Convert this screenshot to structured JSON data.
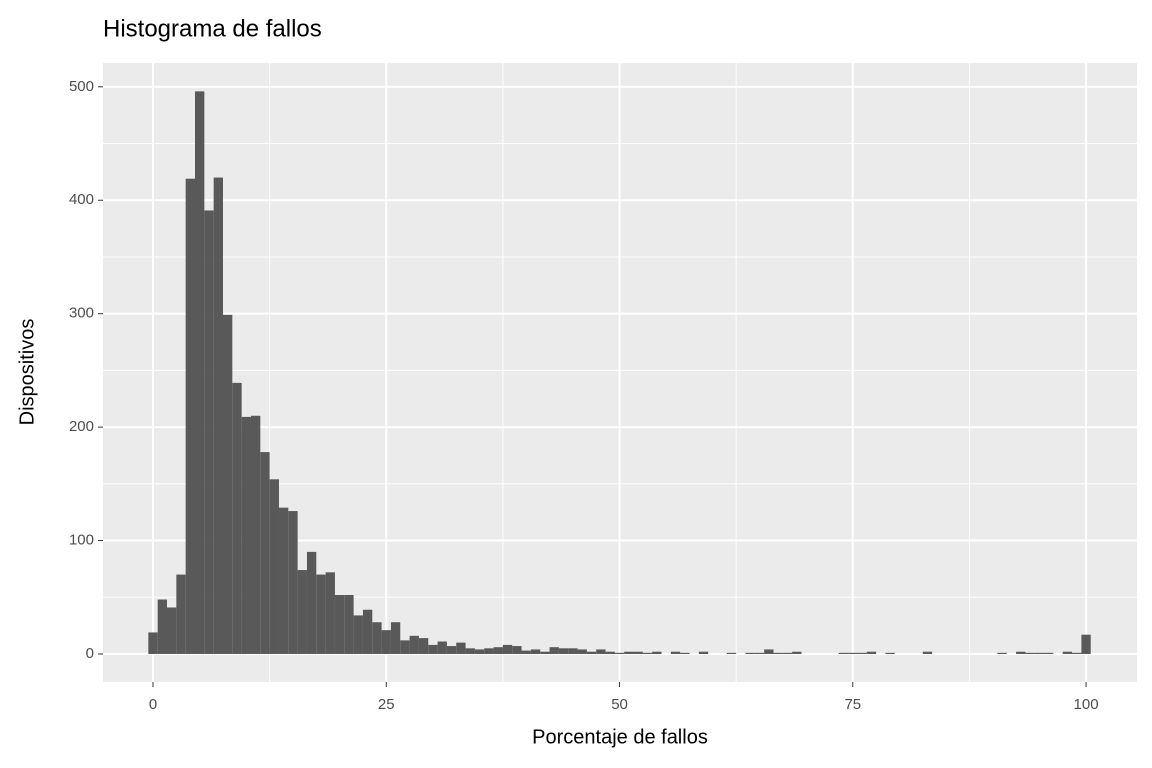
{
  "chart_data": {
    "type": "histogram",
    "title": "Histograma de fallos",
    "x_label": "Porcentaje de fallos",
    "y_label": "Dispositivos",
    "bins": [
      -0.5,
      0.5,
      1.5,
      2.5,
      3.5,
      4.5,
      5.5,
      6.5,
      7.5,
      8.5,
      9.5,
      10.5,
      11.5,
      12.5,
      13.5,
      14.5,
      15.5,
      16.5,
      17.5,
      18.5,
      19.5,
      20.5,
      21.5,
      22.5,
      23.5,
      24.5,
      25.5,
      26.5,
      27.5,
      28.5,
      29.5,
      30.5,
      31.5,
      32.5,
      33.5,
      34.5,
      35.5,
      36.5,
      37.5,
      38.5,
      39.5,
      40.5,
      41.5,
      42.5,
      43.5,
      44.5,
      45.5,
      46.5,
      47.5,
      48.5,
      49.5,
      50.5,
      51.5,
      52.5,
      53.5,
      54.5,
      55.5,
      56.5,
      57.5,
      58.5,
      59.5,
      60.5,
      61.5,
      62.5,
      63.5,
      64.5,
      65.5,
      66.5,
      67.5,
      68.5,
      69.5,
      70.5,
      71.5,
      72.5,
      73.5,
      74.5,
      75.5,
      76.5,
      77.5,
      78.5,
      79.5,
      80.5,
      81.5,
      82.5,
      83.5,
      84.5,
      85.5,
      86.5,
      87.5,
      88.5,
      89.5,
      90.5,
      91.5,
      92.5,
      93.5,
      94.5,
      95.5,
      96.5,
      97.5,
      98.5,
      99.5,
      100.5
    ],
    "counts": [
      19,
      48,
      41,
      70,
      419,
      496,
      391,
      420,
      299,
      239,
      209,
      210,
      178,
      154,
      129,
      126,
      74,
      90,
      70,
      72,
      52,
      52,
      34,
      39,
      28,
      21,
      28,
      12,
      16,
      14,
      8,
      11,
      7,
      10,
      5,
      4,
      5,
      6,
      8,
      7,
      3,
      4,
      2,
      6,
      5,
      5,
      4,
      2,
      4,
      2,
      1,
      2,
      2,
      1,
      2,
      0,
      2,
      1,
      0,
      2,
      0,
      0,
      1,
      0,
      1,
      1,
      4,
      1,
      1,
      2,
      0,
      0,
      0,
      0,
      1,
      1,
      1,
      2,
      0,
      1,
      0,
      0,
      0,
      2,
      0,
      0,
      0,
      0,
      0,
      0,
      0,
      1,
      0,
      2,
      1,
      1,
      1,
      0,
      2,
      1,
      17
    ],
    "color": "#595959",
    "xlim": [
      -5.36,
      105.46
    ],
    "ylim": [
      -24.7,
      521
    ],
    "xticks": [
      0,
      25,
      50,
      75,
      100
    ],
    "yticks": [
      0,
      100,
      200,
      300,
      400,
      500
    ],
    "grid": true
  }
}
